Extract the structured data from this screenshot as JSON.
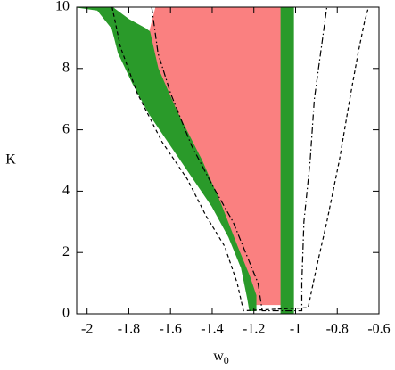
{
  "chart_data": {
    "type": "line",
    "x_label": "w",
    "x_label_subscript": "0",
    "y_label": "K",
    "xlim": [
      -2.05,
      -0.6
    ],
    "ylim": [
      0,
      10
    ],
    "xticks": [
      -2,
      -1.8,
      -1.6,
      -1.4,
      -1.2,
      -1,
      -0.8,
      -0.6
    ],
    "yticks": [
      0,
      2,
      4,
      6,
      8,
      10
    ],
    "series": [
      {
        "style": "fill",
        "color": "#fa8080",
        "x": [
          -1.67,
          -1.07,
          -1.07,
          -1.19,
          -1.19,
          -1.22,
          -1.28,
          -1.36,
          -1.45,
          -1.57,
          -1.66,
          -1.7
        ],
        "values": [
          10,
          10,
          0.3,
          0.3,
          0.6,
          1.2,
          2.2,
          3.6,
          5,
          6.6,
          8,
          9.2
        ]
      },
      {
        "style": "fill",
        "color": "#2a9a2a",
        "x": [
          -2.05,
          -1.88,
          -1.8,
          -1.72,
          -1.7,
          -1.66,
          -1.57,
          -1.45,
          -1.36,
          -1.28,
          -1.22,
          -1.19,
          -1.19,
          -1.22,
          -1.23,
          -1.26,
          -1.32,
          -1.4,
          -1.5,
          -1.6,
          -1.7,
          -1.78,
          -1.85,
          -1.88,
          -1.95
        ],
        "values": [
          10,
          10,
          9.6,
          9.3,
          9.2,
          8,
          6.6,
          5,
          3.6,
          2.2,
          1.2,
          0.6,
          0.1,
          0.1,
          0.5,
          1.5,
          2.5,
          3.5,
          4.5,
          5.5,
          6.5,
          7.5,
          8.5,
          9.3,
          9.9
        ]
      },
      {
        "style": "fill",
        "color": "#2a9a2a",
        "x": [
          -1.07,
          -1.01,
          -1.01,
          -1.07
        ],
        "values": [
          10,
          10,
          0,
          0
        ]
      },
      {
        "style": "dashdot",
        "color": "#000000",
        "x": [
          -1.69,
          -1.66,
          -1.6,
          -1.5,
          -1.4,
          -1.3,
          -1.24,
          -1.18,
          -1.16,
          -0.97,
          -0.97,
          -0.96,
          -0.93,
          -0.91,
          -0.87,
          -0.85
        ],
        "values": [
          10,
          8.5,
          7.2,
          5.5,
          4.2,
          3,
          2,
          1,
          0.1,
          0.1,
          1,
          3,
          5,
          7,
          9,
          10
        ]
      },
      {
        "style": "dashed",
        "color": "#000000",
        "x": [
          -1.88,
          -1.84,
          -1.76,
          -1.64,
          -1.52,
          -1.43,
          -1.34,
          -1.28,
          -1.25,
          -0.94,
          -0.9,
          -0.85,
          -0.79,
          -0.74,
          -0.7,
          -0.67,
          -0.65
        ],
        "values": [
          10,
          8.7,
          7.2,
          5.6,
          4.4,
          3.2,
          2.2,
          1,
          0.1,
          0.2,
          1.5,
          3,
          5,
          7,
          8.5,
          9.5,
          10
        ]
      }
    ]
  }
}
